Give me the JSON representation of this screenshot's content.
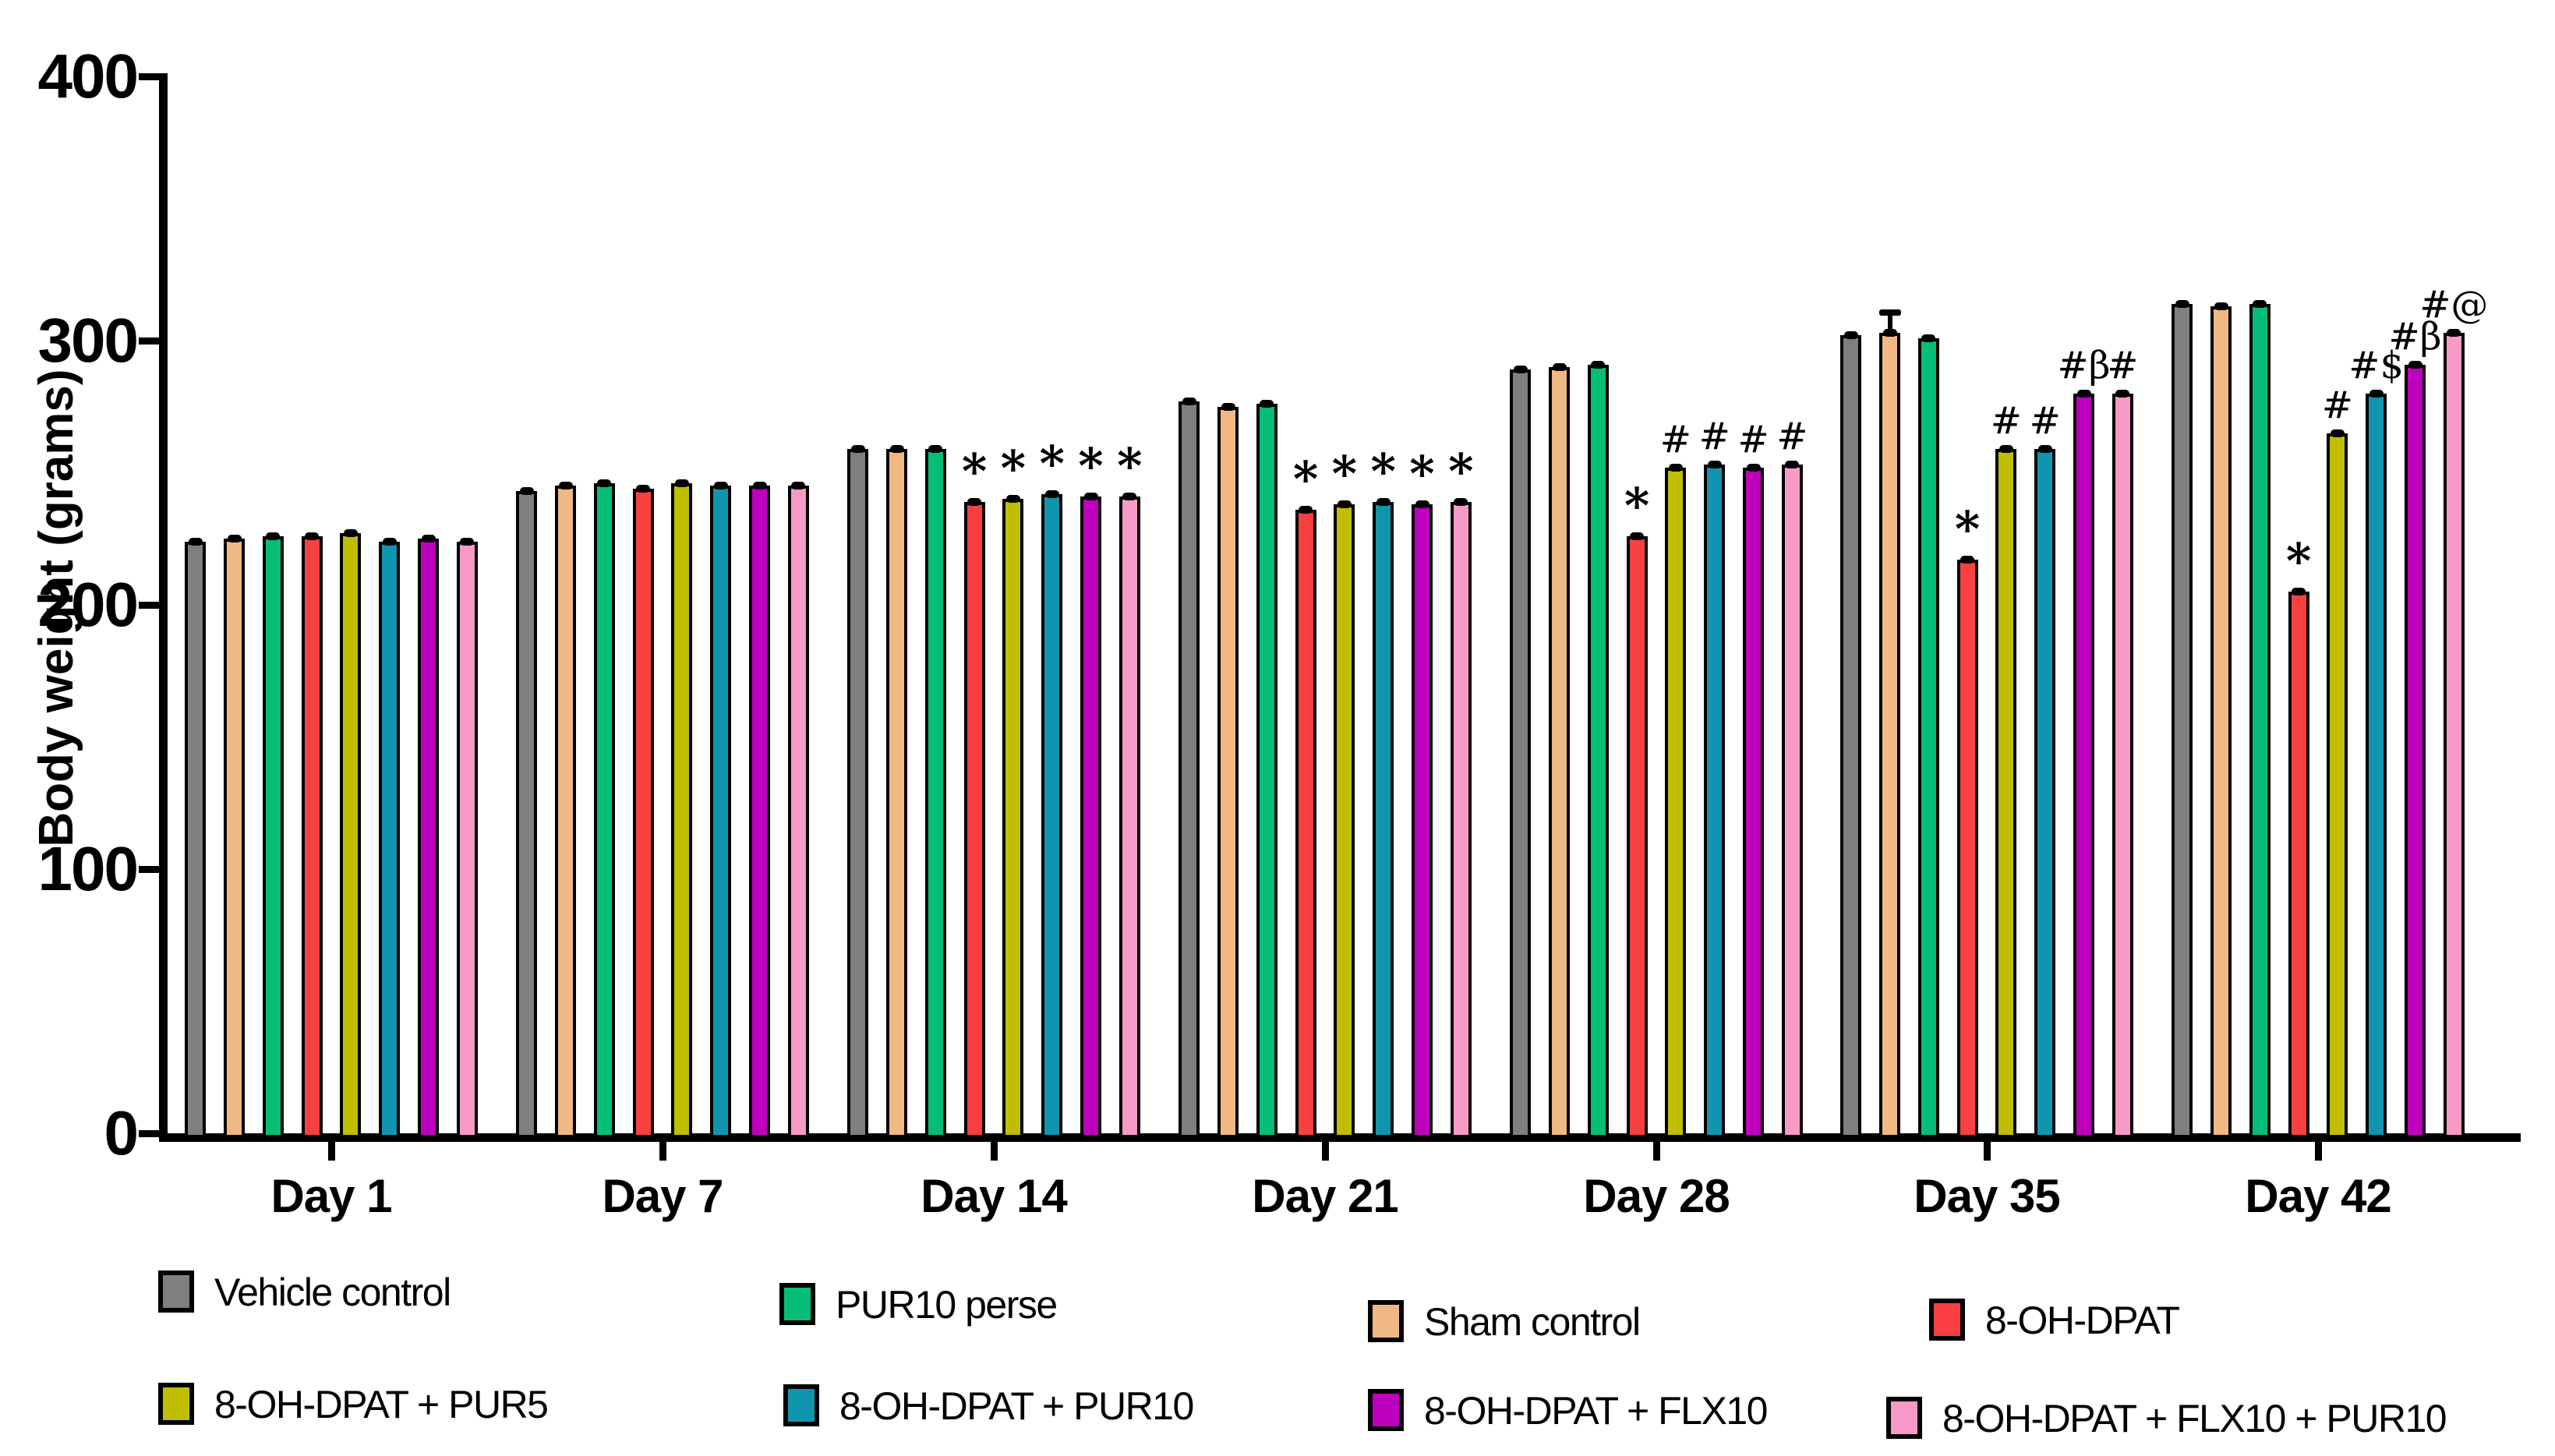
{
  "chart_data": {
    "type": "bar",
    "title": "",
    "ylabel": "Body weight (grams)",
    "xlabel": "",
    "ylim": [
      0,
      400
    ],
    "yticks": [
      0,
      100,
      200,
      300,
      400
    ],
    "grid": false,
    "legend_position": "below chart, two rows",
    "categories": [
      "Day 1",
      "Day 7",
      "Day 14",
      "Day 21",
      "Day 28",
      "Day 35",
      "Day 42"
    ],
    "series": [
      {
        "name": "Vehicle control",
        "color": "#7F7F7F",
        "values": [
          224,
          243,
          259,
          277,
          289,
          302,
          314
        ],
        "annotations": [
          "",
          "",
          "",
          "",
          "",
          "",
          ""
        ]
      },
      {
        "name": "Sham control",
        "color": "#F0B983",
        "values": [
          225,
          245,
          259,
          275,
          290,
          303,
          313
        ],
        "annotations": [
          "",
          "",
          "",
          "",
          "",
          "",
          ""
        ]
      },
      {
        "name": "PUR10 perse",
        "color": "#04BE78",
        "values": [
          226,
          246,
          259,
          276,
          291,
          301,
          314
        ],
        "annotations": [
          "",
          "",
          "",
          "",
          "",
          "",
          ""
        ]
      },
      {
        "name": "8-OH-DPAT",
        "color": "#F84042",
        "values": [
          226,
          244,
          239,
          236,
          226,
          217,
          205
        ],
        "annotations": [
          "",
          "",
          "*",
          "*",
          "*",
          "*",
          "*"
        ]
      },
      {
        "name": "8-OH-DPAT + PUR5",
        "color": "#BFBE00",
        "values": [
          227,
          246,
          240,
          238,
          252,
          259,
          265
        ],
        "annotations": [
          "",
          "",
          "*",
          "*",
          "#",
          "#",
          "#"
        ]
      },
      {
        "name": "8-OH-DPAT + PUR10",
        "color": "#1095AF",
        "values": [
          224,
          245,
          242,
          239,
          253,
          259,
          280
        ],
        "annotations": [
          "",
          "",
          "*",
          "*",
          "#",
          "#",
          "#$"
        ]
      },
      {
        "name": "8-OH-DPAT + FLX10",
        "color": "#BE00BE",
        "values": [
          225,
          245,
          241,
          238,
          252,
          280,
          291
        ],
        "annotations": [
          "",
          "",
          "*",
          "*",
          "#",
          "#β",
          "#β"
        ]
      },
      {
        "name": "8-OH-DPAT + FLX10 + PUR10",
        "color": "#F89AC8",
        "values": [
          224,
          245,
          241,
          239,
          253,
          280,
          303
        ],
        "annotations": [
          "",
          "",
          "*",
          "*",
          "#",
          "#",
          "#@"
        ]
      }
    ],
    "error_bars": "small black SEM caps on top of every bar",
    "visible_whisker": {
      "series": "Sham control",
      "category": "Day 35"
    },
    "legend_rows": [
      [
        "Vehicle control",
        "PUR10 perse",
        "Sham control",
        "8-OH-DPAT"
      ],
      [
        "8-OH-DPAT + PUR5",
        "8-OH-DPAT + PUR10",
        "8-OH-DPAT + FLX10",
        "8-OH-DPAT + FLX10 + PUR10"
      ]
    ]
  }
}
